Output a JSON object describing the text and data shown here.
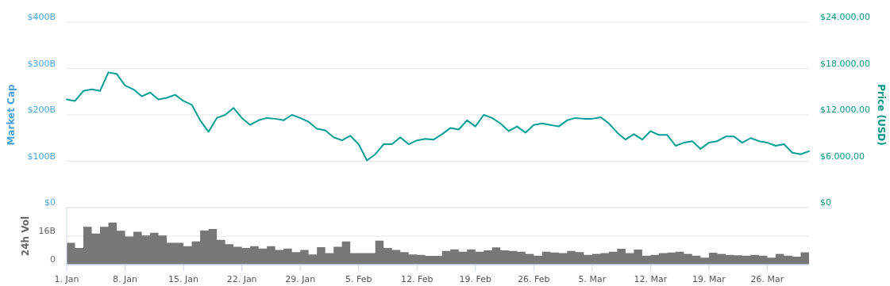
{
  "chart_data": [
    {
      "type": "line",
      "ylabel": "Market Cap",
      "y2label": "Price (USD)",
      "grid": "y",
      "tick_labels": "y",
      "xlim": [
        "--01-01",
        "--03-31"
      ],
      "ylim": [
        0,
        400
      ],
      "yticks": [
        {
          "value": 0,
          "label": "$0"
        },
        {
          "value": 100,
          "label": "$100B"
        },
        {
          "value": 200,
          "label": "$200B"
        },
        {
          "value": 300,
          "label": "$300B"
        },
        {
          "value": 400,
          "label": "$400B"
        }
      ],
      "y2lim": [
        0,
        24000
      ],
      "y2ticks": [
        {
          "value": 0,
          "label": "$0"
        },
        {
          "value": 6000,
          "label": "$6.000,00"
        },
        {
          "value": 12000,
          "label": "$12.000,00"
        },
        {
          "value": 18000,
          "label": "$18.000,00"
        },
        {
          "value": 24000,
          "label": "$24.000,00"
        }
      ],
      "x": [
        "--01-01",
        "--01-02",
        "--01-03",
        "--01-04",
        "--01-05",
        "--01-06",
        "--01-07",
        "--01-08",
        "--01-09",
        "--01-10",
        "--01-11",
        "--01-12",
        "--01-13",
        "--01-14",
        "--01-15",
        "--01-16",
        "--01-17",
        "--01-18",
        "--01-19",
        "--01-20",
        "--01-21",
        "--01-22",
        "--01-23",
        "--01-24",
        "--01-25",
        "--01-26",
        "--01-27",
        "--01-28",
        "--01-29",
        "--01-30",
        "--01-31",
        "--02-01",
        "--02-02",
        "--02-03",
        "--02-04",
        "--02-05",
        "--02-06",
        "--02-07",
        "--02-08",
        "--02-09",
        "--02-10",
        "--02-11",
        "--02-12",
        "--02-13",
        "--02-14",
        "--02-15",
        "--02-16",
        "--02-17",
        "--02-18",
        "--02-19",
        "--02-20",
        "--02-21",
        "--02-22",
        "--02-23",
        "--02-24",
        "--02-25",
        "--02-26",
        "--02-27",
        "--02-28",
        "--03-01",
        "--03-02",
        "--03-03",
        "--03-04",
        "--03-05",
        "--03-06",
        "--03-07",
        "--03-08",
        "--03-09",
        "--03-10",
        "--03-11",
        "--03-12",
        "--03-13",
        "--03-14",
        "--03-15",
        "--03-16",
        "--03-17",
        "--03-18",
        "--03-19",
        "--03-20",
        "--03-21",
        "--03-22",
        "--03-23",
        "--03-24",
        "--03-25",
        "--03-26",
        "--03-27",
        "--03-28",
        "--03-29",
        "--03-30",
        "--03-31"
      ],
      "series": [
        {
          "color": "#009e96",
          "axis": "y2",
          "values": [
            14000,
            13800,
            15100,
            15300,
            15100,
            17500,
            17300,
            15800,
            15300,
            14400,
            14900,
            14000,
            14200,
            14600,
            13800,
            13300,
            11300,
            9800,
            11600,
            12000,
            12900,
            11600,
            10700,
            11300,
            11600,
            11500,
            11300,
            12000,
            11600,
            11100,
            10200,
            10000,
            9100,
            8700,
            9300,
            8200,
            6100,
            6900,
            8200,
            8200,
            9100,
            8200,
            8700,
            8900,
            8800,
            9500,
            10300,
            10100,
            11300,
            10500,
            12000,
            11600,
            10900,
            9900,
            10500,
            9700,
            10700,
            10900,
            10700,
            10500,
            11300,
            11600,
            11500,
            11500,
            11700,
            10900,
            9700,
            8800,
            9500,
            8800,
            9900,
            9400,
            9400,
            8000,
            8400,
            8600,
            7600,
            8400,
            8600,
            9200,
            9200,
            8400,
            9000,
            8600,
            8400,
            8000,
            8200,
            7100,
            6900,
            7300
          ]
        }
      ]
    },
    {
      "type": "area",
      "ylabel": "24h Vol",
      "grid": "y",
      "xlim": [
        "--01-01",
        "--03-31"
      ],
      "xticks": [
        {
          "value": "--01-01",
          "label": "1. Jan"
        },
        {
          "value": "--01-08",
          "label": "8. Jan"
        },
        {
          "value": "--01-15",
          "label": "15. Jan"
        },
        {
          "value": "--01-22",
          "label": "22. Jan"
        },
        {
          "value": "--01-29",
          "label": "29. Jan"
        },
        {
          "value": "--02-05",
          "label": "5. Feb"
        },
        {
          "value": "--02-12",
          "label": "12. Feb"
        },
        {
          "value": "--02-19",
          "label": "19. Feb"
        },
        {
          "value": "--02-26",
          "label": "26. Feb"
        },
        {
          "value": "--03-05",
          "label": "5. Mar"
        },
        {
          "value": "--03-12",
          "label": "12. Mar"
        },
        {
          "value": "--03-19",
          "label": "19. Mar"
        },
        {
          "value": "--03-26",
          "label": "26. Mar"
        }
      ],
      "ylim": [
        0,
        32
      ],
      "yticks": [
        0,
        {
          "value": 16,
          "label": "16B"
        },
        {
          "value": 32,
          "label": null
        }
      ],
      "x": [
        "--01-01",
        "--01-02",
        "--01-03",
        "--01-04",
        "--01-05",
        "--01-06",
        "--01-07",
        "--01-08",
        "--01-09",
        "--01-10",
        "--01-11",
        "--01-12",
        "--01-13",
        "--01-14",
        "--01-15",
        "--01-16",
        "--01-17",
        "--01-18",
        "--01-19",
        "--01-20",
        "--01-21",
        "--01-22",
        "--01-23",
        "--01-24",
        "--01-25",
        "--01-26",
        "--01-27",
        "--01-28",
        "--01-29",
        "--01-30",
        "--01-31",
        "--02-01",
        "--02-02",
        "--02-03",
        "--02-04",
        "--02-05",
        "--02-06",
        "--02-07",
        "--02-08",
        "--02-09",
        "--02-10",
        "--02-11",
        "--02-12",
        "--02-13",
        "--02-14",
        "--02-15",
        "--02-16",
        "--02-17",
        "--02-18",
        "--02-19",
        "--02-20",
        "--02-21",
        "--02-22",
        "--02-23",
        "--02-24",
        "--02-25",
        "--02-26",
        "--02-27",
        "--02-28",
        "--03-01",
        "--03-02",
        "--03-03",
        "--03-04",
        "--03-05",
        "--03-06",
        "--03-07",
        "--03-08",
        "--03-09",
        "--03-10",
        "--03-11",
        "--03-12",
        "--03-13",
        "--03-14",
        "--03-15",
        "--03-16",
        "--03-17",
        "--03-18",
        "--03-19",
        "--03-20",
        "--03-21",
        "--03-22",
        "--03-23",
        "--03-24",
        "--03-25",
        "--03-26",
        "--03-27",
        "--03-28",
        "--03-29",
        "--03-30",
        "--03-31"
      ],
      "series": [
        {
          "color": "#777777",
          "values": [
            12.2,
            9.3,
            21.2,
            17.4,
            21.2,
            23.6,
            19.0,
            15.8,
            18.4,
            16.3,
            17.9,
            16.3,
            12.2,
            12.2,
            10.3,
            13.0,
            19.1,
            20.0,
            13.9,
            11.4,
            10.0,
            9.3,
            10.3,
            9.0,
            10.3,
            8.2,
            9.0,
            7.0,
            8.2,
            5.7,
            9.8,
            6.5,
            10.0,
            13.0,
            6.5,
            6.5,
            6.5,
            13.5,
            9.3,
            8.2,
            7.0,
            5.7,
            5.5,
            4.9,
            4.9,
            7.7,
            8.6,
            7.2,
            8.6,
            7.2,
            8.0,
            9.7,
            8.0,
            7.7,
            7.2,
            6.0,
            5.0,
            7.2,
            6.8,
            6.4,
            7.7,
            7.0,
            5.5,
            6.0,
            6.4,
            7.2,
            8.9,
            6.4,
            8.4,
            5.0,
            5.5,
            6.4,
            6.8,
            7.2,
            6.0,
            5.0,
            3.9,
            6.7,
            6.0,
            5.5,
            5.2,
            5.0,
            5.5,
            5.0,
            3.9,
            6.0,
            5.0,
            4.4,
            6.9,
            4.7
          ]
        }
      ]
    }
  ]
}
